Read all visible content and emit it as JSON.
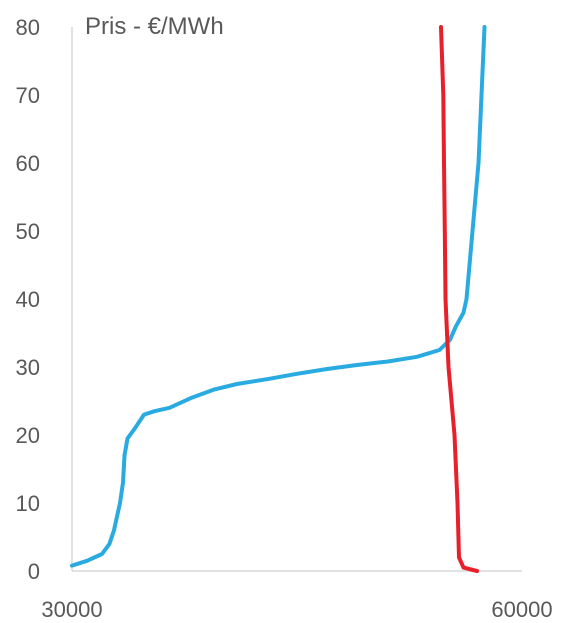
{
  "chart_data": {
    "type": "line",
    "title": "",
    "ylabel": "Pris - €/MWh",
    "xlabel": "",
    "xlim": [
      30000,
      60000
    ],
    "ylim": [
      0,
      80
    ],
    "x_ticks": [
      "30000",
      "60000"
    ],
    "y_ticks": [
      "0",
      "10",
      "20",
      "30",
      "40",
      "50",
      "60",
      "70",
      "80"
    ],
    "grid": false,
    "legend": "none",
    "series": [
      {
        "color": "#29ABE2",
        "points": [
          [
            30000,
            0.8
          ],
          [
            31000,
            1.5
          ],
          [
            32000,
            2.5
          ],
          [
            32500,
            4
          ],
          [
            32800,
            6
          ],
          [
            33000,
            8
          ],
          [
            33200,
            10
          ],
          [
            33400,
            13
          ],
          [
            33500,
            17
          ],
          [
            33700,
            19.5
          ],
          [
            34200,
            21
          ],
          [
            34800,
            23
          ],
          [
            35500,
            23.5
          ],
          [
            36500,
            24
          ],
          [
            38000,
            25.5
          ],
          [
            39500,
            26.7
          ],
          [
            41000,
            27.5
          ],
          [
            43000,
            28.2
          ],
          [
            45000,
            29
          ],
          [
            47000,
            29.7
          ],
          [
            49000,
            30.3
          ],
          [
            51000,
            30.8
          ],
          [
            53000,
            31.5
          ],
          [
            54500,
            32.5
          ],
          [
            55200,
            34
          ],
          [
            55600,
            36
          ],
          [
            56100,
            38
          ],
          [
            56300,
            40
          ],
          [
            56500,
            45
          ],
          [
            56700,
            50
          ],
          [
            56900,
            55
          ],
          [
            57100,
            60
          ],
          [
            57300,
            70
          ],
          [
            57500,
            80
          ]
        ]
      },
      {
        "color": "#E8202A",
        "points": [
          [
            57000,
            0
          ],
          [
            56100,
            0.5
          ],
          [
            55800,
            2
          ],
          [
            55700,
            10
          ],
          [
            55500,
            20
          ],
          [
            55300,
            25
          ],
          [
            55100,
            30
          ],
          [
            55000,
            35
          ],
          [
            54900,
            40
          ],
          [
            54850,
            50
          ],
          [
            54800,
            60
          ],
          [
            54750,
            70
          ],
          [
            54600,
            80
          ]
        ]
      }
    ]
  }
}
